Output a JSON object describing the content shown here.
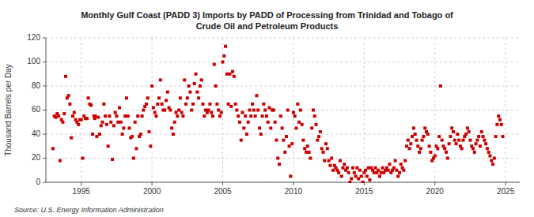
{
  "chart_data": {
    "type": "scatter",
    "title": "Monthly Gulf Coast (PADD 3) Imports by PADD of Processing from Trinidad and Tobago of\nCrude Oil and Petroleum Products",
    "y_label": "Thousand Barrels per Day",
    "annotations": [
      "Source: U.S. Energy Information Administration"
    ],
    "color": "#cc0000",
    "marker": "square",
    "grid": true,
    "xlim": [
      1992.5,
      2026.0
    ],
    "ylim": [
      0,
      120
    ],
    "xticks": [
      1995,
      2000,
      2005,
      2010,
      2015,
      2020,
      2025
    ],
    "yticks": [
      0,
      20,
      40,
      60,
      80,
      100,
      120
    ],
    "x": [
      1993.0,
      1993.1,
      1993.2,
      1993.3,
      1993.4,
      1993.5,
      1993.6,
      1993.7,
      1993.8,
      1993.9,
      1994.0,
      1994.1,
      1994.2,
      1994.3,
      1994.4,
      1994.5,
      1994.6,
      1994.7,
      1994.8,
      1994.9,
      1995.0,
      1995.1,
      1995.2,
      1995.3,
      1995.4,
      1995.5,
      1995.6,
      1995.7,
      1995.8,
      1995.9,
      1995.95,
      1996.0,
      1996.1,
      1996.2,
      1996.3,
      1996.4,
      1996.5,
      1996.6,
      1996.7,
      1996.8,
      1996.9,
      1997.0,
      1997.1,
      1997.2,
      1997.3,
      1997.4,
      1997.5,
      1997.6,
      1997.7,
      1997.8,
      1997.9,
      1998.0,
      1998.1,
      1998.2,
      1998.3,
      1998.4,
      1998.5,
      1998.6,
      1998.7,
      1998.8,
      1998.9,
      1999.0,
      1999.1,
      1999.2,
      1999.3,
      1999.4,
      1999.5,
      1999.6,
      1999.7,
      1999.8,
      1999.9,
      2000.0,
      2000.1,
      2000.2,
      2000.3,
      2000.4,
      2000.5,
      2000.6,
      2000.7,
      2000.8,
      2000.9,
      2001.0,
      2001.1,
      2001.2,
      2001.3,
      2001.4,
      2001.5,
      2001.6,
      2001.7,
      2001.8,
      2001.9,
      2002.0,
      2002.1,
      2002.2,
      2002.3,
      2002.4,
      2002.5,
      2002.6,
      2002.7,
      2002.8,
      2002.9,
      2003.0,
      2003.1,
      2003.2,
      2003.3,
      2003.4,
      2003.5,
      2003.6,
      2003.7,
      2003.8,
      2003.9,
      2004.0,
      2004.1,
      2004.2,
      2004.3,
      2004.4,
      2004.5,
      2004.6,
      2004.7,
      2004.8,
      2004.9,
      2005.0,
      2005.1,
      2005.2,
      2005.3,
      2005.4,
      2005.5,
      2005.6,
      2005.7,
      2005.8,
      2005.9,
      2006.0,
      2006.1,
      2006.2,
      2006.3,
      2006.4,
      2006.5,
      2006.6,
      2006.7,
      2006.8,
      2006.9,
      2007.0,
      2007.1,
      2007.2,
      2007.3,
      2007.4,
      2007.5,
      2007.6,
      2007.7,
      2007.8,
      2007.9,
      2008.0,
      2008.1,
      2008.2,
      2008.3,
      2008.4,
      2008.5,
      2008.6,
      2008.7,
      2008.8,
      2008.9,
      2009.0,
      2009.1,
      2009.2,
      2009.3,
      2009.4,
      2009.5,
      2009.6,
      2009.7,
      2009.8,
      2009.9,
      2010.0,
      2010.1,
      2010.2,
      2010.3,
      2010.4,
      2010.5,
      2010.6,
      2010.7,
      2010.8,
      2010.9,
      2011.0,
      2011.1,
      2011.2,
      2011.3,
      2011.4,
      2011.5,
      2011.6,
      2011.7,
      2011.8,
      2011.9,
      2012.0,
      2012.1,
      2012.2,
      2012.3,
      2012.4,
      2012.5,
      2012.6,
      2012.7,
      2012.8,
      2012.9,
      2013.0,
      2013.1,
      2013.2,
      2013.3,
      2013.4,
      2013.5,
      2013.6,
      2013.7,
      2013.8,
      2013.9,
      2014.0,
      2014.1,
      2014.2,
      2014.3,
      2014.4,
      2014.5,
      2014.6,
      2014.7,
      2014.8,
      2014.9,
      2015.0,
      2015.1,
      2015.2,
      2015.3,
      2015.4,
      2015.5,
      2015.6,
      2015.7,
      2015.8,
      2015.9,
      2016.0,
      2016.1,
      2016.2,
      2016.3,
      2016.4,
      2016.5,
      2016.6,
      2016.7,
      2016.8,
      2016.9,
      2017.0,
      2017.1,
      2017.2,
      2017.3,
      2017.4,
      2017.5,
      2017.6,
      2017.7,
      2017.8,
      2017.9,
      2018.0,
      2018.1,
      2018.2,
      2018.3,
      2018.4,
      2018.5,
      2018.6,
      2018.7,
      2018.8,
      2018.9,
      2019.0,
      2019.1,
      2019.2,
      2019.3,
      2019.4,
      2019.5,
      2019.6,
      2019.7,
      2019.8,
      2019.9,
      2020.0,
      2020.1,
      2020.2,
      2020.3,
      2020.4,
      2020.5,
      2020.6,
      2020.7,
      2020.8,
      2020.9,
      2021.0,
      2021.1,
      2021.2,
      2021.3,
      2021.4,
      2021.5,
      2021.6,
      2021.7,
      2021.8,
      2021.9,
      2022.0,
      2022.1,
      2022.2,
      2022.3,
      2022.4,
      2022.5,
      2022.6,
      2022.7,
      2022.8,
      2022.9,
      2023.0,
      2023.1,
      2023.2,
      2023.3,
      2023.4,
      2023.5,
      2023.6,
      2023.7,
      2023.8,
      2023.9,
      2024.0,
      2024.1,
      2024.2,
      2024.3,
      2024.4,
      2024.5,
      2024.6,
      2024.7,
      2024.8
    ],
    "values": [
      28,
      55,
      54,
      57,
      55,
      18,
      52,
      50,
      57,
      88,
      70,
      72,
      65,
      37,
      55,
      58,
      52,
      50,
      48,
      52,
      52,
      20,
      55,
      53,
      53,
      70,
      65,
      64,
      40,
      55,
      53,
      55,
      38,
      54,
      40,
      47,
      50,
      65,
      55,
      48,
      30,
      55,
      50,
      19,
      47,
      58,
      55,
      50,
      62,
      50,
      40,
      45,
      55,
      70,
      55,
      45,
      37,
      38,
      20,
      50,
      28,
      55,
      38,
      40,
      55,
      60,
      63,
      65,
      70,
      42,
      30,
      80,
      62,
      58,
      55,
      65,
      70,
      85,
      65,
      60,
      60,
      68,
      75,
      62,
      60,
      45,
      40,
      50,
      58,
      55,
      60,
      70,
      58,
      55,
      85,
      65,
      70,
      80,
      75,
      60,
      65,
      82,
      90,
      75,
      70,
      80,
      85,
      65,
      55,
      60,
      58,
      60,
      65,
      58,
      55,
      98,
      80,
      65,
      60,
      55,
      58,
      100,
      105,
      113,
      90,
      65,
      90,
      63,
      92,
      88,
      65,
      60,
      55,
      50,
      35,
      58,
      45,
      55,
      40,
      50,
      60,
      55,
      65,
      60,
      55,
      72,
      60,
      45,
      40,
      55,
      65,
      60,
      55,
      50,
      62,
      45,
      60,
      60,
      50,
      35,
      20,
      15,
      55,
      45,
      35,
      25,
      38,
      60,
      30,
      5,
      32,
      58,
      55,
      45,
      65,
      50,
      60,
      48,
      35,
      28,
      25,
      30,
      25,
      20,
      45,
      60,
      55,
      48,
      35,
      38,
      42,
      28,
      25,
      18,
      32,
      28,
      18,
      14,
      20,
      10,
      14,
      12,
      10,
      8,
      18,
      5,
      12,
      15,
      10,
      12,
      8,
      0,
      3,
      12,
      8,
      5,
      12,
      3,
      10,
      5,
      0,
      8,
      10,
      5,
      12,
      2,
      12,
      10,
      8,
      12,
      8,
      10,
      5,
      8,
      12,
      8,
      10,
      12,
      10,
      15,
      8,
      10,
      12,
      18,
      10,
      5,
      8,
      15,
      12,
      10,
      18,
      30,
      35,
      28,
      32,
      38,
      45,
      40,
      35,
      30,
      25,
      28,
      35,
      38,
      45,
      42,
      40,
      30,
      25,
      18,
      20,
      22,
      30,
      28,
      38,
      80,
      35,
      30,
      28,
      25,
      20,
      32,
      38,
      45,
      42,
      35,
      32,
      40,
      35,
      30,
      28,
      35,
      38,
      40,
      45,
      42,
      35,
      30,
      28,
      25,
      32,
      35,
      38,
      30,
      42,
      38,
      35,
      32,
      28,
      25,
      22,
      18,
      15,
      20,
      38,
      48,
      55,
      52,
      48,
      38
    ]
  }
}
